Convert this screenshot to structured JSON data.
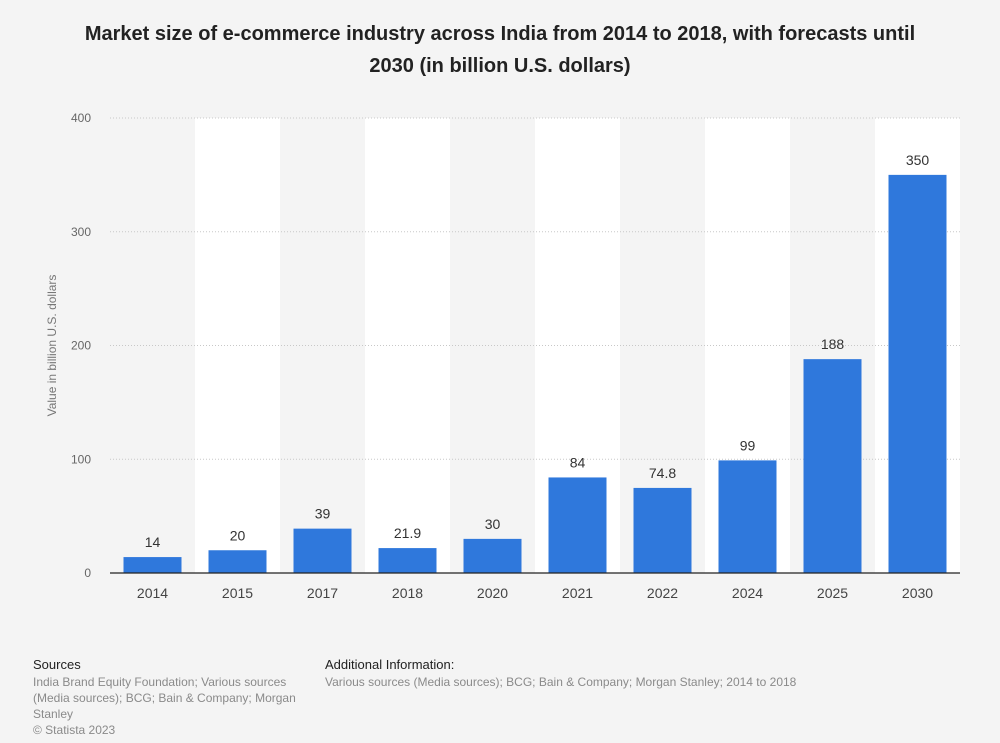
{
  "chart_data": {
    "type": "bar",
    "title": "Market size of e-commerce industry across India from 2014 to 2018, with forecasts until 2030 (in billion U.S. dollars)",
    "xlabel": "",
    "ylabel": "Value in billion U.S. dollars",
    "categories": [
      "2014",
      "2015",
      "2017",
      "2018",
      "2020",
      "2021",
      "2022",
      "2024",
      "2025",
      "2030"
    ],
    "values": [
      14,
      20,
      39,
      21.9,
      30,
      84,
      74.8,
      99,
      188,
      350
    ],
    "value_labels": [
      "14",
      "20",
      "39",
      "21.9",
      "30",
      "84",
      "74.8",
      "99",
      "188",
      "350"
    ],
    "ylim": [
      0,
      400
    ],
    "yticks": [
      "0",
      "100",
      "200",
      "300",
      "400"
    ],
    "ytick_values": [
      0,
      100,
      200,
      300,
      400
    ],
    "grid": true,
    "bar_color": "#2f78dc"
  },
  "footer": {
    "sources_title": "Sources",
    "sources_text": "India Brand Equity Foundation; Various sources (Media sources); BCG; Bain & Company; Morgan Stanley",
    "copyright": "© Statista 2023",
    "info_title": "Additional Information:",
    "info_text": "Various sources (Media sources); BCG; Bain & Company; Morgan Stanley; 2014 to 2018"
  }
}
